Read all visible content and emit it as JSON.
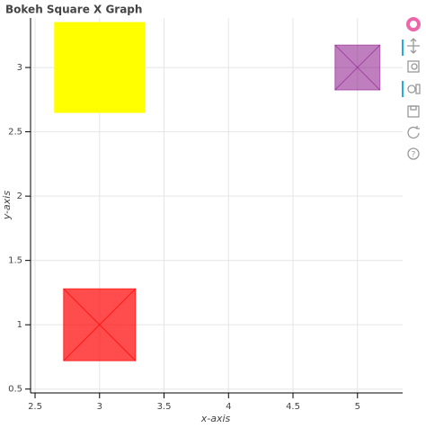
{
  "chart_data": {
    "type": "scatter",
    "marker": "square_x",
    "title": "Bokeh Square X Graph",
    "x_label": "x-axis",
    "y_label": "y-axis",
    "x": [
      3,
      3,
      5
    ],
    "y": [
      1,
      3,
      3
    ],
    "sizes": [
      80,
      100,
      50
    ],
    "colors": [
      "#ff0000",
      "#ffff00",
      "#800080"
    ],
    "fill_alpha": [
      0.7,
      1,
      0.5
    ],
    "xlim": [
      2.465,
      5.35
    ],
    "ylim": [
      0.47,
      3.385
    ],
    "xticks": [
      2.5,
      3,
      3.5,
      4,
      4.5,
      5
    ],
    "yticks": [
      0.5,
      1,
      1.5,
      2,
      2.5,
      3
    ],
    "grid": true
  }
}
